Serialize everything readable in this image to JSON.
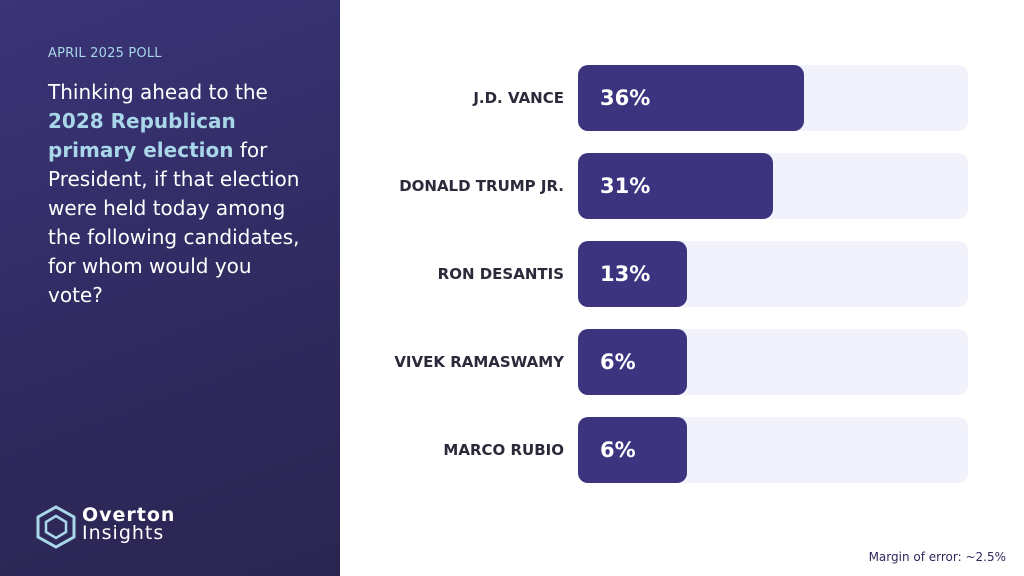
{
  "chart_data": {
    "type": "bar",
    "subtitle": "APRIL 2025 POLL",
    "title_parts": [
      "Thinking ahead to the ",
      "2028 Republican primary election",
      " for President, if that election were held today among the following candidates, for whom would you vote?"
    ],
    "categories": [
      "J.D. VANCE",
      "DONALD TRUMP JR.",
      "RON DESANTIS",
      "VIVEK RAMASWAMY",
      "MARCO RUBIO"
    ],
    "values": [
      36,
      31,
      13,
      6,
      6
    ],
    "value_labels": [
      "36%",
      "31%",
      "13%",
      "6%",
      "6%"
    ],
    "color": "#3d3480",
    "track_color": "#f1f2fb",
    "note": "Margin of error: ~2.5%",
    "logo": [
      "Overton",
      "Insights"
    ]
  }
}
